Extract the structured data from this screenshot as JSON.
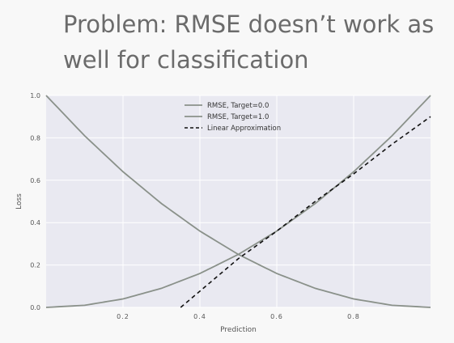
{
  "slide": {
    "title_line1": "Problem: RMSE doesn’t work as",
    "title_line2": "well for classification"
  },
  "chart_data": {
    "type": "line",
    "xlabel": "Prediction",
    "ylabel": "Loss",
    "xlim": [
      0.0,
      1.0
    ],
    "ylim": [
      0.0,
      1.0
    ],
    "xticks": [
      "0.2",
      "0.4",
      "0.6",
      "0.8"
    ],
    "xtick_values": [
      0.2,
      0.4,
      0.6,
      0.8
    ],
    "yticks": [
      "0.0",
      "0.2",
      "0.4",
      "0.6",
      "0.8",
      "1.0"
    ],
    "ytick_values": [
      0.0,
      0.2,
      0.4,
      0.6,
      0.8,
      1.0
    ],
    "grid": true,
    "legend_position": "top-center",
    "series": [
      {
        "name": "RMSE, Target=0.0",
        "style": "solid",
        "color": "#8a918a",
        "x": [
          0.0,
          0.1,
          0.2,
          0.3,
          0.4,
          0.5,
          0.6,
          0.7,
          0.8,
          0.9,
          1.0
        ],
        "y": [
          0.0,
          0.01,
          0.04,
          0.09,
          0.16,
          0.25,
          0.36,
          0.49,
          0.64,
          0.81,
          1.0
        ]
      },
      {
        "name": "RMSE, Target=1.0",
        "style": "solid",
        "color": "#8a918a",
        "x": [
          0.0,
          0.1,
          0.2,
          0.3,
          0.4,
          0.5,
          0.6,
          0.7,
          0.8,
          0.9,
          1.0
        ],
        "y": [
          1.0,
          0.81,
          0.64,
          0.49,
          0.36,
          0.25,
          0.16,
          0.09,
          0.04,
          0.01,
          0.0
        ]
      },
      {
        "name": "Linear Approximation",
        "style": "dashed",
        "color": "#111111",
        "x": [
          0.35,
          0.5,
          0.6,
          0.7,
          0.8,
          0.9,
          1.0
        ],
        "y": [
          0.0,
          0.23,
          0.36,
          0.5,
          0.63,
          0.77,
          0.9
        ]
      }
    ]
  },
  "colors": {
    "plot_background": "#e9e9f1",
    "grid": "#ffffff",
    "tick_text": "#555555",
    "title_text": "#6b6b6b"
  }
}
